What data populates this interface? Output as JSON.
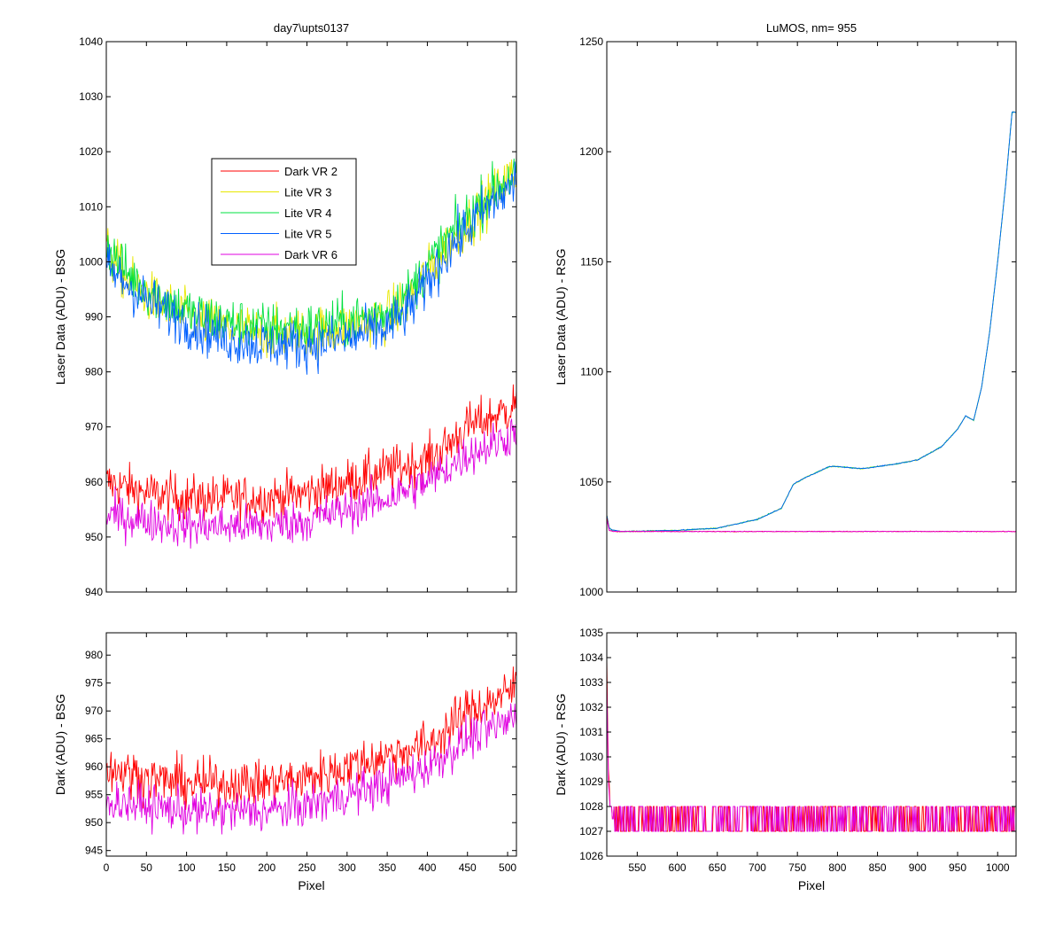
{
  "colors": {
    "dark_vr2": "#ff0000",
    "lite_vr3": "#e8e800",
    "lite_vr4": "#00e040",
    "lite_vr5": "#0060ff",
    "dark_vr6": "#e000e0"
  },
  "chart_data": [
    {
      "id": "top-left",
      "type": "line",
      "title": "day7\\upts0137",
      "xlabel": "",
      "ylabel": "Laser Data (ADU) - BSG",
      "xlim": [
        0,
        511
      ],
      "ylim": [
        940,
        1040
      ],
      "yticks": [
        940,
        950,
        960,
        970,
        980,
        990,
        1000,
        1010,
        1020,
        1030,
        1040
      ],
      "xticks": [
        0,
        50,
        100,
        150,
        200,
        250,
        300,
        350,
        400,
        450,
        500
      ],
      "show_x_tick_labels": false,
      "legend": {
        "position": "upper-middle",
        "entries": [
          "Dark VR 2",
          "Lite VR 3",
          "Lite VR 4",
          "Lite VR 5",
          "Dark VR 6"
        ]
      },
      "series": [
        {
          "name": "Dark VR 2",
          "color_key": "dark_vr2",
          "noise": 5.5,
          "x": [
            0,
            50,
            100,
            150,
            200,
            250,
            300,
            350,
            400,
            420,
            450,
            500,
            511
          ],
          "y": [
            960,
            958,
            957,
            957,
            957,
            958,
            960,
            962,
            964,
            966,
            970,
            973,
            975
          ]
        },
        {
          "name": "Lite VR 3",
          "color_key": "lite_vr3",
          "noise": 6,
          "x": [
            0,
            25,
            50,
            100,
            150,
            200,
            250,
            300,
            350,
            375,
            400,
            425,
            450,
            475,
            500,
            511
          ],
          "y": [
            1002,
            997,
            994,
            990,
            988,
            987,
            987,
            988,
            990,
            993,
            998,
            1003,
            1007,
            1011,
            1015,
            1016
          ]
        },
        {
          "name": "Lite VR 4",
          "color_key": "lite_vr4",
          "noise": 6,
          "x": [
            0,
            25,
            50,
            100,
            150,
            200,
            250,
            300,
            350,
            375,
            400,
            425,
            450,
            475,
            500,
            511
          ],
          "y": [
            1003,
            998,
            995,
            991,
            989,
            988,
            988,
            989,
            991,
            994,
            999,
            1004,
            1008,
            1012,
            1015,
            1016
          ]
        },
        {
          "name": "Lite VR 5",
          "color_key": "lite_vr5",
          "noise": 6,
          "x": [
            0,
            25,
            50,
            100,
            150,
            200,
            250,
            300,
            350,
            375,
            400,
            425,
            450,
            475,
            500,
            511
          ],
          "y": [
            999,
            996,
            993,
            989,
            986,
            985,
            985,
            986,
            988,
            991,
            996,
            1002,
            1006,
            1010,
            1013,
            1015
          ]
        },
        {
          "name": "Dark VR 6",
          "color_key": "dark_vr6",
          "noise": 5,
          "x": [
            0,
            50,
            100,
            150,
            200,
            250,
            300,
            350,
            400,
            420,
            450,
            500,
            511
          ],
          "y": [
            954,
            953,
            952,
            952,
            952,
            953,
            955,
            957,
            960,
            962,
            965,
            968,
            970
          ]
        }
      ]
    },
    {
      "id": "top-right",
      "type": "line",
      "title": "LuMOS, nm= 955",
      "xlabel": "",
      "ylabel": "Laser Data (ADU) - RSG",
      "xlim": [
        512,
        1023
      ],
      "ylim": [
        1000,
        1250
      ],
      "yticks": [
        1000,
        1050,
        1100,
        1150,
        1200,
        1250
      ],
      "xticks": [
        550,
        600,
        650,
        700,
        750,
        800,
        850,
        900,
        950,
        1000
      ],
      "show_x_tick_labels": false,
      "series": [
        {
          "name": "Lite VR 3",
          "color_key": "lite_vr3",
          "noise": 0.3,
          "x": [
            512,
            515,
            520,
            530,
            600,
            650,
            700,
            730,
            745,
            760,
            790,
            800,
            830,
            870,
            900,
            930,
            950,
            960,
            970,
            980,
            990,
            1000,
            1010,
            1018
          ],
          "y": [
            1035,
            1029,
            1028,
            1027.5,
            1028,
            1029,
            1033,
            1038,
            1049,
            1052,
            1057,
            1057,
            1056,
            1058,
            1060,
            1066,
            1074,
            1080,
            1078,
            1093,
            1118,
            1150,
            1185,
            1218
          ]
        },
        {
          "name": "Lite VR 4",
          "color_key": "lite_vr4",
          "noise": 0.3,
          "x": [
            512,
            515,
            520,
            530,
            600,
            650,
            700,
            730,
            745,
            760,
            790,
            800,
            830,
            870,
            900,
            930,
            950,
            960,
            970,
            980,
            990,
            1000,
            1010,
            1018
          ],
          "y": [
            1035,
            1029,
            1028,
            1027.5,
            1028,
            1029,
            1033,
            1038,
            1049,
            1052,
            1057,
            1057,
            1056,
            1058,
            1060,
            1066,
            1074,
            1080,
            1078,
            1093,
            1118,
            1150,
            1185,
            1218
          ]
        },
        {
          "name": "Lite VR 5",
          "color_key": "lite_vr5",
          "noise": 0.3,
          "x": [
            512,
            515,
            520,
            530,
            600,
            650,
            700,
            730,
            745,
            760,
            790,
            800,
            830,
            870,
            900,
            930,
            950,
            960,
            970,
            980,
            990,
            1000,
            1010,
            1018
          ],
          "y": [
            1035,
            1029,
            1028,
            1027.5,
            1028,
            1029,
            1033,
            1038,
            1049,
            1052,
            1057,
            1057,
            1056,
            1058,
            1060,
            1066,
            1074,
            1080,
            1078,
            1093,
            1118,
            1150,
            1185,
            1218
          ]
        },
        {
          "name": "Dark VR 2",
          "color_key": "dark_vr2",
          "noise": 0.2,
          "x": [
            512,
            515,
            520,
            1023
          ],
          "y": [
            1034,
            1028,
            1027.5,
            1027.5
          ]
        },
        {
          "name": "Dark VR 6",
          "color_key": "dark_vr6",
          "noise": 0.2,
          "x": [
            512,
            515,
            520,
            1023
          ],
          "y": [
            1033,
            1028,
            1027.5,
            1027.5
          ]
        }
      ]
    },
    {
      "id": "bottom-left",
      "type": "line",
      "title": "",
      "xlabel": "Pixel",
      "ylabel": "Dark (ADU) - BSG",
      "xlim": [
        0,
        511
      ],
      "ylim": [
        944,
        984
      ],
      "yticks": [
        945,
        950,
        955,
        960,
        965,
        970,
        975,
        980
      ],
      "xticks": [
        0,
        50,
        100,
        150,
        200,
        250,
        300,
        350,
        400,
        450,
        500
      ],
      "show_x_tick_labels": true,
      "series": [
        {
          "name": "Dark VR 2",
          "color_key": "dark_vr2",
          "noise": 5.5,
          "x": [
            0,
            50,
            100,
            150,
            200,
            250,
            300,
            350,
            400,
            420,
            450,
            500,
            511
          ],
          "y": [
            960,
            958,
            957,
            957,
            957,
            958,
            960,
            962,
            964,
            966,
            970,
            973,
            975
          ]
        },
        {
          "name": "Dark VR 6",
          "color_key": "dark_vr6",
          "noise": 5,
          "x": [
            0,
            50,
            100,
            150,
            200,
            250,
            300,
            350,
            400,
            420,
            450,
            500,
            511
          ],
          "y": [
            954,
            953,
            952,
            952,
            952,
            953,
            955,
            957,
            960,
            962,
            965,
            968,
            970
          ]
        }
      ]
    },
    {
      "id": "bottom-right",
      "type": "line",
      "title": "",
      "xlabel": "Pixel",
      "ylabel": "Dark (ADU) - RSG",
      "xlim": [
        512,
        1023
      ],
      "ylim": [
        1026,
        1035
      ],
      "yticks": [
        1026,
        1027,
        1028,
        1029,
        1030,
        1031,
        1032,
        1033,
        1034,
        1035
      ],
      "xticks": [
        550,
        600,
        650,
        700,
        750,
        800,
        850,
        900,
        950,
        1000
      ],
      "show_x_tick_labels": true,
      "series": [
        {
          "name": "Dark VR 2",
          "color_key": "dark_vr2",
          "quantized": true,
          "x": [
            512,
            513,
            514,
            515,
            516,
            520,
            1023
          ],
          "y": [
            1034,
            1031.5,
            1029.5,
            1029,
            1028,
            1027.5,
            1027.5
          ]
        },
        {
          "name": "Dark VR 6",
          "color_key": "dark_vr6",
          "quantized": true,
          "x": [
            512,
            513,
            514,
            515,
            516,
            520,
            1023
          ],
          "y": [
            1033,
            1031,
            1029,
            1028.5,
            1028,
            1027.5,
            1027.5
          ]
        }
      ]
    }
  ]
}
